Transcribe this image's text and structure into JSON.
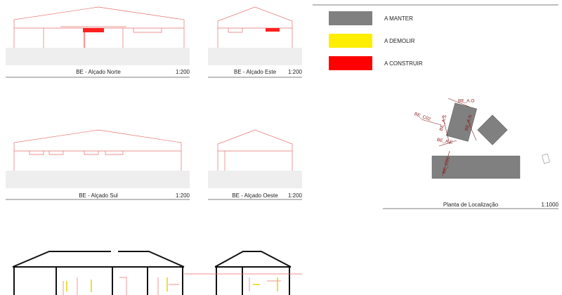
{
  "views": [
    {
      "title": "BE - Alçado Norte",
      "scale": "1:200"
    },
    {
      "title": "BE - Alçado Este",
      "scale": "1:200"
    },
    {
      "title": "BE - Alçado Sul",
      "scale": "1:200"
    },
    {
      "title": "BE - Alçado Oeste",
      "scale": "1:200"
    }
  ],
  "legend": [
    {
      "label": "A MANTER",
      "color": "#808080"
    },
    {
      "label": "A DEMOLIR",
      "color": "#ffee00"
    },
    {
      "label": "A CONSTRUIR",
      "color": "#ff0000"
    }
  ],
  "location_plan": {
    "title": "Planta de Localização",
    "scale": "1:1000",
    "labels": [
      "BE_A.O",
      "BE_C02",
      "BE_A.S",
      "BE_A.N",
      "BE_A.E",
      "BE_C01"
    ]
  }
}
